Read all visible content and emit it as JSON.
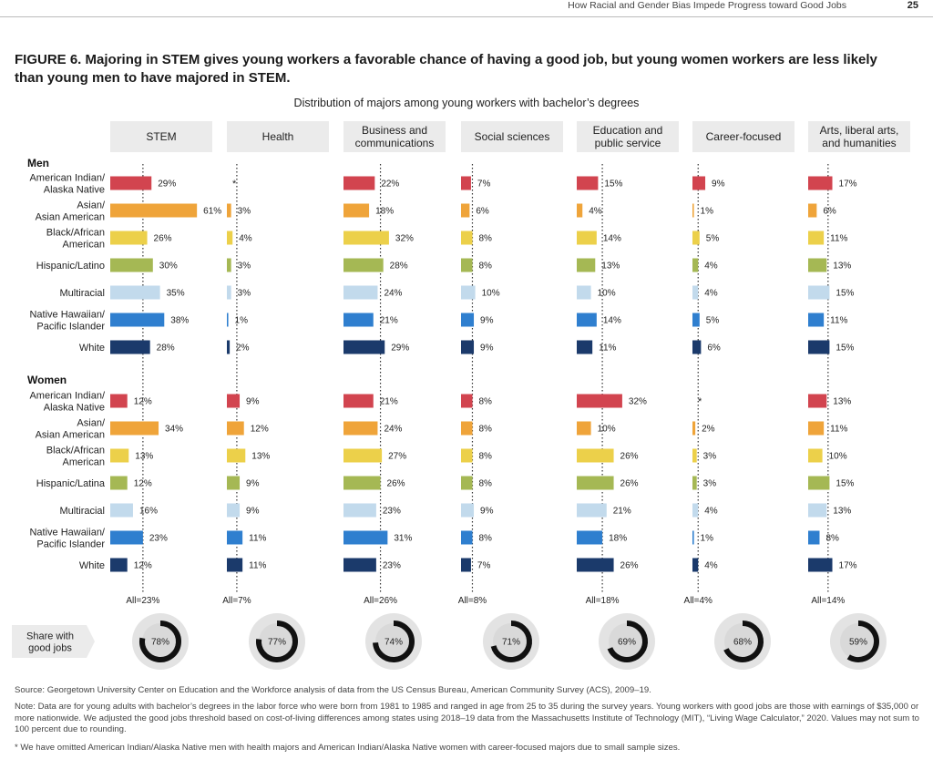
{
  "header": {
    "running_title": "How Racial and Gender Bias Impede Progress toward Good Jobs",
    "page_number": "25"
  },
  "figure": {
    "label": "FIGURE 6.",
    "title": "Majoring in STEM gives young workers a favorable chance of having a good job, but young women workers are less likely than young men to have majored in STEM."
  },
  "chart_data": {
    "type": "bar",
    "title": "Distribution of majors among young workers with bachelor’s degrees",
    "majors": [
      {
        "name": "STEM",
        "all": "All=23%",
        "all_value": 23,
        "good_jobs": 78,
        "men": [
          29,
          61,
          26,
          30,
          35,
          38,
          28
        ],
        "women": [
          12,
          34,
          13,
          12,
          16,
          23,
          12
        ],
        "men_labels": [
          "29%",
          "61%",
          "26%",
          "30%",
          "35%",
          "38%",
          "28%"
        ],
        "women_labels": [
          "12%",
          "34%",
          "13%",
          "12%",
          "16%",
          "23%",
          "12%"
        ]
      },
      {
        "name": "Health",
        "all": "All=7%",
        "all_value": 7,
        "good_jobs": 77,
        "men": [
          null,
          3,
          4,
          3,
          3,
          1,
          2
        ],
        "women": [
          9,
          12,
          13,
          9,
          9,
          11,
          11
        ],
        "men_labels": [
          "*",
          "3%",
          "4%",
          "3%",
          "3%",
          "1%",
          "2%"
        ],
        "women_labels": [
          "9%",
          "12%",
          "13%",
          "9%",
          "9%",
          "11%",
          "11%"
        ]
      },
      {
        "name": "Business and communications",
        "all": "All=26%",
        "all_value": 26,
        "good_jobs": 74,
        "men": [
          22,
          18,
          32,
          28,
          24,
          21,
          29
        ],
        "women": [
          21,
          24,
          27,
          26,
          23,
          31,
          23
        ],
        "men_labels": [
          "22%",
          "18%",
          "32%",
          "28%",
          "24%",
          "21%",
          "29%"
        ],
        "women_labels": [
          "21%",
          "24%",
          "27%",
          "26%",
          "23%",
          "31%",
          "23%"
        ]
      },
      {
        "name": "Social sciences",
        "all": "All=8%",
        "all_value": 8,
        "good_jobs": 71,
        "men": [
          7,
          6,
          8,
          8,
          10,
          9,
          9
        ],
        "women": [
          8,
          8,
          8,
          8,
          9,
          8,
          7
        ],
        "men_labels": [
          "7%",
          "6%",
          "8%",
          "8%",
          "10%",
          "9%",
          "9%"
        ],
        "women_labels": [
          "8%",
          "8%",
          "8%",
          "8%",
          "9%",
          "8%",
          "7%"
        ]
      },
      {
        "name": "Education and public service",
        "all": "All=18%",
        "all_value": 18,
        "good_jobs": 69,
        "men": [
          15,
          4,
          14,
          13,
          10,
          14,
          11
        ],
        "women": [
          32,
          10,
          26,
          26,
          21,
          18,
          26
        ],
        "men_labels": [
          "15%",
          "4%",
          "14%",
          "13%",
          "10%",
          "14%",
          "11%"
        ],
        "women_labels": [
          "32%",
          "10%",
          "26%",
          "26%",
          "21%",
          "18%",
          "26%"
        ]
      },
      {
        "name": "Career-focused",
        "all": "All=4%",
        "all_value": 4,
        "good_jobs": 68,
        "men": [
          9,
          1,
          5,
          4,
          4,
          5,
          6
        ],
        "women": [
          null,
          2,
          3,
          3,
          4,
          1,
          4
        ],
        "men_labels": [
          "9%",
          "1%",
          "5%",
          "4%",
          "4%",
          "5%",
          "6%"
        ],
        "women_labels": [
          "*",
          "2%",
          "3%",
          "3%",
          "4%",
          "1%",
          "4%"
        ]
      },
      {
        "name": "Arts, liberal arts, and humanities",
        "all": "All=14%",
        "all_value": 14,
        "good_jobs": 59,
        "men": [
          17,
          6,
          11,
          13,
          15,
          11,
          15
        ],
        "women": [
          13,
          11,
          10,
          15,
          13,
          8,
          17
        ],
        "men_labels": [
          "17%",
          "6%",
          "11%",
          "13%",
          "15%",
          "11%",
          "15%"
        ],
        "women_labels": [
          "13%",
          "11%",
          "10%",
          "15%",
          "13%",
          "8%",
          "17%"
        ]
      }
    ],
    "men_header": "Men",
    "women_header": "Women",
    "men_groups": [
      "American Indian/ Alaska Native",
      "Asian/ Asian American",
      "Black/African American",
      "Hispanic/Latino",
      "Multiracial",
      "Native Hawaiian/ Pacific Islander",
      "White"
    ],
    "women_groups": [
      "American Indian/ Alaska Native",
      "Asian/ Asian American",
      "Black/African American",
      "Hispanic/Latina",
      "Multiracial",
      "Native Hawaiian/ Pacific Islander",
      "White"
    ],
    "group_colors": [
      "#d2444f",
      "#efa43a",
      "#ecd04a",
      "#a5b854",
      "#c2daec",
      "#2f7fcf",
      "#1b3a6b"
    ],
    "share_label": "Share with good jobs",
    "good_job_labels": [
      "78%",
      "77%",
      "74%",
      "71%",
      "69%",
      "68%",
      "59%"
    ]
  },
  "footnotes": {
    "source": "Source: Georgetown University Center on Education and the Workforce analysis of data from the US Census Bureau, American Community Survey (ACS), 2009–19.",
    "note": "Note: Data are for young adults with bachelor’s degrees in the labor force who were born from 1981 to 1985 and ranged in age from 25 to 35 during the survey years. Young workers with good jobs are those with earnings of $35,000 or more nationwide. We adjusted the good jobs threshold based on cost-of-living differences among states using 2018–19 data from the Massachusetts Institute of Technology (MIT), “Living Wage Calculator,” 2020. Values may not sum to 100 percent due to rounding.",
    "asterisk": "* We have omitted American Indian/Alaska Native men with health majors and American Indian/Alaska Native women with career-focused majors due to small sample sizes."
  }
}
